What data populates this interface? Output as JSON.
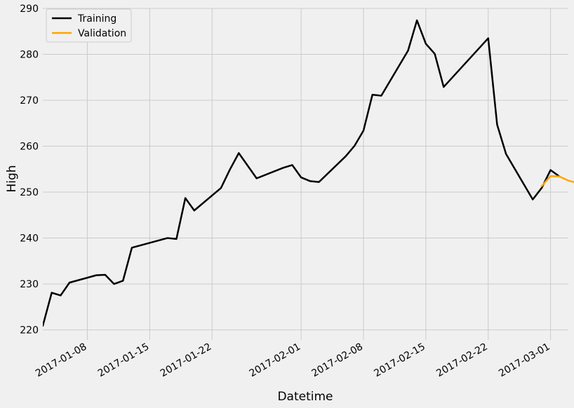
{
  "chart_data": {
    "type": "line",
    "xlabel": "Datetime",
    "ylabel": "High",
    "x_ticks": [
      "2017-01-08",
      "2017-01-15",
      "2017-01-22",
      "2017-02-01",
      "2017-02-08",
      "2017-02-15",
      "2017-02-22",
      "2017-03-01"
    ],
    "y_ticks": [
      220,
      230,
      240,
      250,
      260,
      270,
      280,
      290
    ],
    "xlim": [
      "2017-01-03",
      "2017-03-03"
    ],
    "ylim": [
      217.8,
      290
    ],
    "grid": true,
    "legend_position": "top-left",
    "series": [
      {
        "name": "Training",
        "color": "#000000",
        "points": [
          [
            "2017-01-03",
            220.9
          ],
          [
            "2017-01-04",
            228.1
          ],
          [
            "2017-01-05",
            227.5
          ],
          [
            "2017-01-06",
            230.3
          ],
          [
            "2017-01-09",
            231.9
          ],
          [
            "2017-01-10",
            232.0
          ],
          [
            "2017-01-11",
            230.0
          ],
          [
            "2017-01-12",
            230.7
          ],
          [
            "2017-01-13",
            237.9
          ],
          [
            "2017-01-17",
            240.0
          ],
          [
            "2017-01-18",
            239.8
          ],
          [
            "2017-01-19",
            248.7
          ],
          [
            "2017-01-20",
            246.0
          ],
          [
            "2017-01-23",
            250.9
          ],
          [
            "2017-01-24",
            254.9
          ],
          [
            "2017-01-25",
            258.5
          ],
          [
            "2017-01-27",
            253.0
          ],
          [
            "2017-01-30",
            255.3
          ],
          [
            "2017-01-31",
            255.9
          ],
          [
            "2017-02-01",
            253.2
          ],
          [
            "2017-02-02",
            252.4
          ],
          [
            "2017-02-03",
            252.2
          ],
          [
            "2017-02-06",
            257.8
          ],
          [
            "2017-02-07",
            260.1
          ],
          [
            "2017-02-08",
            263.4
          ],
          [
            "2017-02-09",
            271.2
          ],
          [
            "2017-02-10",
            271.0
          ],
          [
            "2017-02-13",
            280.8
          ],
          [
            "2017-02-14",
            287.4
          ],
          [
            "2017-02-15",
            282.3
          ],
          [
            "2017-02-16",
            280.1
          ],
          [
            "2017-02-17",
            272.9
          ],
          [
            "2017-02-22",
            283.5
          ],
          [
            "2017-02-23",
            264.7
          ],
          [
            "2017-02-24",
            258.3
          ],
          [
            "2017-02-27",
            248.4
          ],
          [
            "2017-02-28",
            250.9
          ],
          [
            "2017-03-01",
            254.8
          ],
          [
            "2017-03-02",
            253.4
          ]
        ]
      },
      {
        "name": "Validation",
        "color": "#ffa500",
        "points": [
          [
            "2017-02-28",
            251.3
          ],
          [
            "2017-03-01",
            253.5
          ],
          [
            "2017-03-02",
            253.4
          ],
          [
            "2017-03-03",
            252.5
          ],
          [
            "2017-03-04",
            252.0
          ]
        ]
      }
    ]
  }
}
